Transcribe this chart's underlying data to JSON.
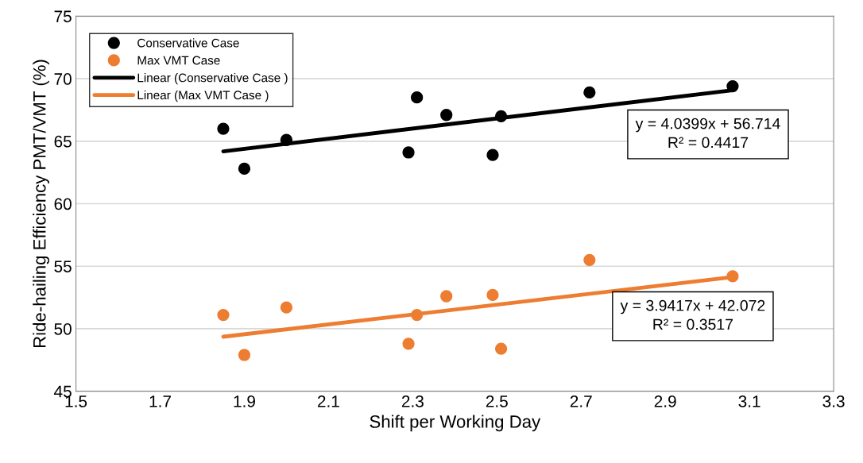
{
  "chart_data": {
    "type": "scatter",
    "xlabel": "Shift per Working Day",
    "ylabel": "Ride-hailing Efficiency PMT/VMT (%)",
    "xlim": [
      1.5,
      3.3
    ],
    "xticks": [
      {
        "value": 1.5,
        "label": "1.5"
      },
      {
        "value": 1.7,
        "label": "1.7"
      },
      {
        "value": 1.9,
        "label": "1.9"
      },
      {
        "value": 2.1,
        "label": "2.1"
      },
      {
        "value": 2.3,
        "label": "2.3"
      },
      {
        "value": 2.5,
        "label": "2.5"
      },
      {
        "value": 2.7,
        "label": "2.7"
      },
      {
        "value": 2.9,
        "label": "2.9"
      },
      {
        "value": 3.1,
        "label": "3.1"
      },
      {
        "value": 3.3,
        "label": "3.3"
      }
    ],
    "ylim": [
      45,
      75
    ],
    "yticks": [
      45,
      50,
      55,
      60,
      65,
      70,
      75
    ],
    "grid": "y",
    "legend": "top left",
    "marker": "circle",
    "series": [
      {
        "name": "Conservative Case",
        "color": "#000000",
        "x": [
          1.85,
          1.9,
          2.0,
          2.29,
          2.31,
          2.38,
          2.49,
          2.51,
          2.72,
          3.06
        ],
        "values": [
          66.0,
          62.8,
          65.1,
          64.1,
          68.5,
          67.1,
          63.9,
          67.0,
          68.9,
          69.4
        ]
      },
      {
        "name": "Max VMT Case",
        "color": "#ed7d31",
        "x": [
          1.85,
          1.9,
          2.0,
          2.29,
          2.31,
          2.38,
          2.49,
          2.51,
          2.72,
          3.06
        ],
        "values": [
          51.1,
          47.9,
          51.7,
          48.8,
          51.1,
          52.6,
          52.7,
          48.4,
          55.5,
          54.2
        ]
      },
      {
        "name": "Linear (Conservative Case )",
        "type": "line",
        "color": "#000000",
        "marker": "none",
        "x": [
          1.85,
          3.06
        ],
        "values": [
          64.19,
          69.08
        ]
      },
      {
        "name": "Linear (Max VMT Case )",
        "type": "line",
        "color": "#ed7d31",
        "marker": "none",
        "x": [
          1.85,
          3.06
        ],
        "values": [
          49.36,
          54.13
        ]
      }
    ],
    "annotations": [
      "y = 4.0399x + 56.714\nR² = 0.4417",
      "y = 3.9417x + 42.072\nR² = 0.3517"
    ]
  }
}
